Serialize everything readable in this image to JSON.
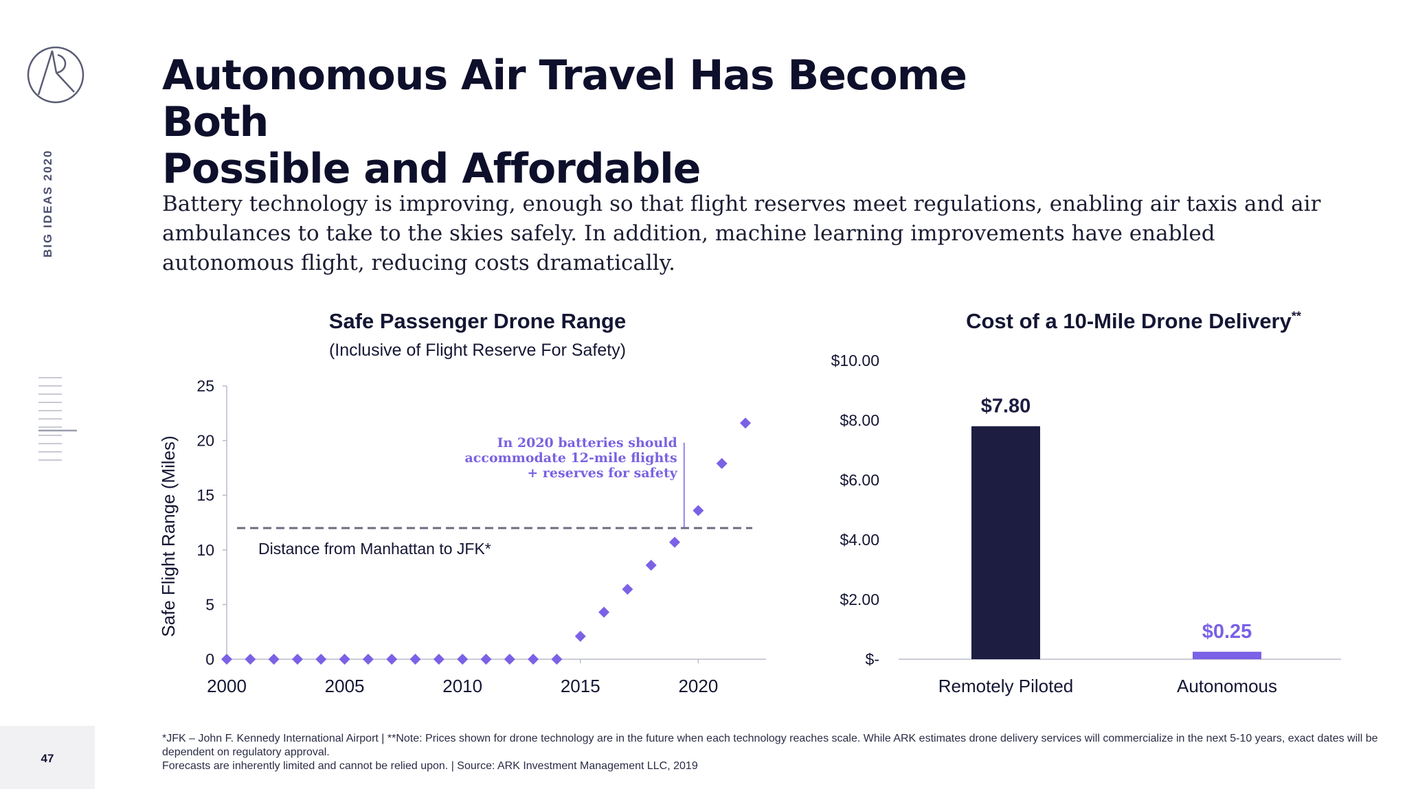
{
  "sidebar": {
    "label": "BIG IDEAS 2020",
    "page_number": "47",
    "logo_icon": "ark-logo-icon"
  },
  "header": {
    "title_line1": "Autonomous Air Travel Has Become Both",
    "title_line2": "Possible and Affordable",
    "intro": "Battery technology is improving, enough so that flight reserves meet regulations, enabling air taxis and air ambulances to take to the skies safely. In addition, machine learning improvements have enabled autonomous flight, reducing costs dramatically."
  },
  "footnote": {
    "line1": "*JFK – John F. Kennedy International Airport   |  **Note: Prices shown for drone technology are in the future when each technology reaches scale. While ARK estimates drone delivery services will commercialize in the next 5-10 years, exact dates will be dependent on regulatory approval.",
    "line2": "Forecasts are inherently limited and cannot be relied upon.  |  Source: ARK Investment Management LLC, 2019"
  },
  "chart_data": [
    {
      "type": "scatter",
      "title": "Safe Passenger Drone Range",
      "subtitle": "(Inclusive of Flight Reserve For Safety)",
      "xlabel": "",
      "ylabel": "Safe Flight Range (Miles)",
      "xlim": [
        2000,
        2022
      ],
      "ylim": [
        0,
        25
      ],
      "x_ticks": [
        2000,
        2005,
        2010,
        2015,
        2020
      ],
      "y_ticks": [
        0,
        5,
        10,
        15,
        20,
        25
      ],
      "grid": false,
      "marker": "diamond",
      "color": "#7b61e6",
      "x": [
        2000,
        2001,
        2002,
        2003,
        2004,
        2005,
        2006,
        2007,
        2008,
        2009,
        2010,
        2011,
        2012,
        2013,
        2014,
        2015,
        2016,
        2017,
        2018,
        2019,
        2020,
        2021,
        2022
      ],
      "y": [
        0,
        0,
        0,
        0,
        0,
        0,
        0,
        0,
        0,
        0,
        0,
        0,
        0,
        0,
        0,
        2.1,
        4.3,
        6.4,
        8.6,
        10.7,
        13.6,
        17.9,
        21.6
      ],
      "reference_line": {
        "y": 12,
        "label": "Distance from Manhattan to JFK*",
        "style": "dashed",
        "color": "#6b6d80"
      },
      "annotation": {
        "lines": [
          "In 2020 batteries should",
          "accommodate 12-mile flights",
          "+ reserves for safety"
        ],
        "color": "#7a62e0"
      }
    },
    {
      "type": "bar",
      "title": "Cost of a 10-Mile Drone Delivery",
      "title_suffix": "**",
      "categories": [
        "Remotely Piloted",
        "Autonomous"
      ],
      "values": [
        7.8,
        0.25
      ],
      "value_labels": [
        "$7.80",
        "$0.25"
      ],
      "colors": [
        "#1d1d42",
        "#7b61e6"
      ],
      "ylim": [
        0,
        10
      ],
      "y_tick_labels": [
        "$-",
        "$2.00",
        "$4.00",
        "$6.00",
        "$8.00",
        "$10.00"
      ],
      "y_ticks": [
        0,
        2,
        4,
        6,
        8,
        10
      ],
      "grid": false,
      "xlabel": "",
      "ylabel": ""
    }
  ]
}
